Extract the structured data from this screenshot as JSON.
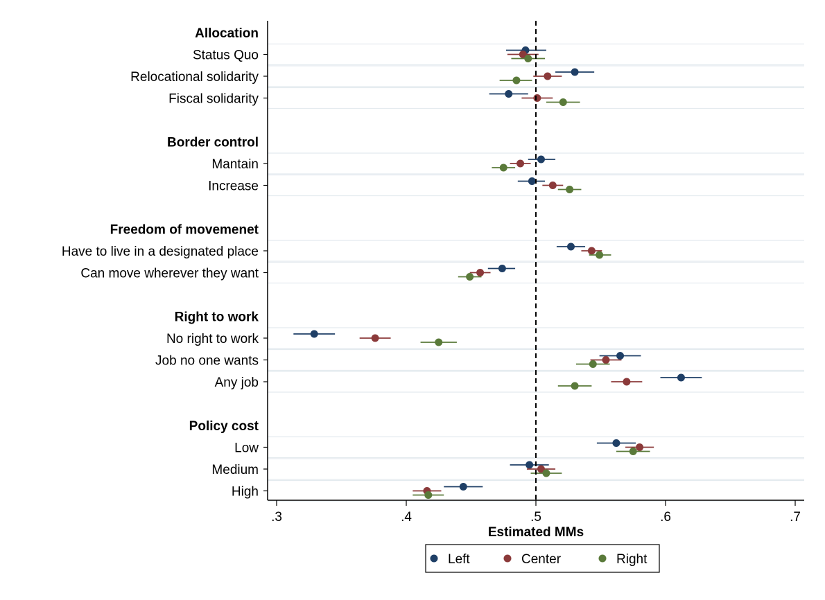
{
  "chart_data": {
    "type": "scatter",
    "subtype": "dot-and-whisker",
    "title": "",
    "xlabel": "Estimated MMs",
    "ylabel": "",
    "xlim": [
      0.3,
      0.7
    ],
    "xticks": [
      ".3",
      ".4",
      ".5",
      ".6",
      ".7"
    ],
    "xtick_values": [
      0.3,
      0.4,
      0.5,
      0.6,
      0.7
    ],
    "reference_line": 0.5,
    "grid": true,
    "legend_position": "bottom",
    "series": [
      {
        "name": "Left",
        "color": "#1f3f66"
      },
      {
        "name": "Center",
        "color": "#8b3a3a"
      },
      {
        "name": "Right",
        "color": "#5a7a3a"
      }
    ],
    "groups": [
      {
        "label": "Allocation",
        "rows": [
          {
            "label": "Status Quo",
            "values": [
              0.492,
              0.49,
              0.494
            ],
            "ci": [
              [
                0.477,
                0.508
              ],
              [
                0.478,
                0.502
              ],
              [
                0.481,
                0.507
              ]
            ]
          },
          {
            "label": "Relocational solidarity",
            "values": [
              0.53,
              0.509,
              0.485
            ],
            "ci": [
              [
                0.515,
                0.545
              ],
              [
                0.498,
                0.52
              ],
              [
                0.472,
                0.497
              ]
            ]
          },
          {
            "label": "Fiscal solidarity",
            "values": [
              0.479,
              0.501,
              0.521
            ],
            "ci": [
              [
                0.464,
                0.494
              ],
              [
                0.489,
                0.513
              ],
              [
                0.508,
                0.534
              ]
            ]
          }
        ]
      },
      {
        "label": "Border control",
        "rows": [
          {
            "label": "Mantain",
            "values": [
              0.504,
              0.488,
              0.475
            ],
            "ci": [
              [
                0.494,
                0.515
              ],
              [
                0.48,
                0.496
              ],
              [
                0.466,
                0.484
              ]
            ]
          },
          {
            "label": "Increase",
            "values": [
              0.497,
              0.513,
              0.526
            ],
            "ci": [
              [
                0.486,
                0.507
              ],
              [
                0.505,
                0.521
              ],
              [
                0.517,
                0.535
              ]
            ]
          }
        ]
      },
      {
        "label": "Freedom of movemenet",
        "rows": [
          {
            "label": "Have to live in a designated place",
            "values": [
              0.527,
              0.543,
              0.549
            ],
            "ci": [
              [
                0.516,
                0.538
              ],
              [
                0.535,
                0.551
              ],
              [
                0.541,
                0.558
              ]
            ]
          },
          {
            "label": "Can move wherever they want",
            "values": [
              0.474,
              0.457,
              0.449
            ],
            "ci": [
              [
                0.463,
                0.484
              ],
              [
                0.449,
                0.465
              ],
              [
                0.44,
                0.458
              ]
            ]
          }
        ]
      },
      {
        "label": "Right to work",
        "rows": [
          {
            "label": "No right to work",
            "values": [
              0.329,
              0.376,
              0.425
            ],
            "ci": [
              [
                0.313,
                0.345
              ],
              [
                0.364,
                0.388
              ],
              [
                0.411,
                0.439
              ]
            ]
          },
          {
            "label": "Job no one wants",
            "values": [
              0.565,
              0.554,
              0.544
            ],
            "ci": [
              [
                0.549,
                0.581
              ],
              [
                0.542,
                0.566
              ],
              [
                0.531,
                0.557
              ]
            ]
          },
          {
            "label": "Any job",
            "values": [
              0.612,
              0.57,
              0.53
            ],
            "ci": [
              [
                0.596,
                0.628
              ],
              [
                0.558,
                0.582
              ],
              [
                0.517,
                0.543
              ]
            ]
          }
        ]
      },
      {
        "label": "Policy cost",
        "rows": [
          {
            "label": "Low",
            "values": [
              0.562,
              0.58,
              0.575
            ],
            "ci": [
              [
                0.547,
                0.577
              ],
              [
                0.569,
                0.591
              ],
              [
                0.562,
                0.588
              ]
            ]
          },
          {
            "label": "Medium",
            "values": [
              0.495,
              0.504,
              0.508
            ],
            "ci": [
              [
                0.48,
                0.51
              ],
              [
                0.493,
                0.515
              ],
              [
                0.496,
                0.52
              ]
            ]
          },
          {
            "label": "High",
            "values": [
              0.444,
              0.416,
              0.417
            ],
            "ci": [
              [
                0.429,
                0.459
              ],
              [
                0.405,
                0.427
              ],
              [
                0.405,
                0.429
              ]
            ]
          }
        ]
      }
    ]
  }
}
